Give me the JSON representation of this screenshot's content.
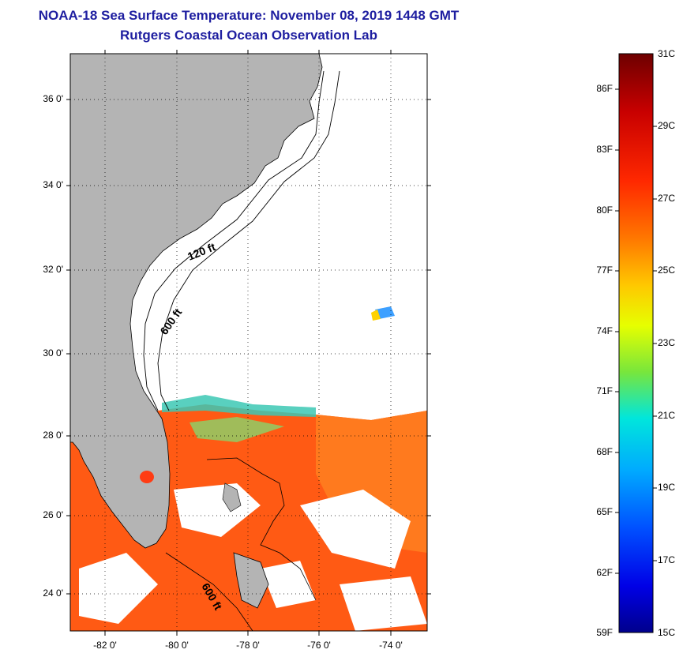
{
  "title": {
    "line1": "NOAA-18 Sea Surface Temperature:  November 08, 2019 1448 GMT",
    "line2": "Rutgers Coastal Ocean Observation Lab"
  },
  "map": {
    "lat_labels": [
      "36 0'",
      "34 0'",
      "32 0'",
      "30 0'",
      "28 0'",
      "26 0'",
      "24 0'"
    ],
    "lon_labels": [
      "-82 0'",
      "-80 0'",
      "-78 0'",
      "-76 0'",
      "-74 0'"
    ],
    "contour_labels": [
      "120 ft",
      "600 ft",
      "600 ft"
    ],
    "colors": {
      "land": "#b4b4b4",
      "no_data": "#ffffff",
      "warm_water": "#ff5a10",
      "grid": "#000000"
    }
  },
  "colorbar": {
    "f_labels": [
      "86F",
      "83F",
      "80F",
      "77F",
      "74F",
      "71F",
      "68F",
      "65F",
      "62F",
      "59F"
    ],
    "c_labels": [
      "31C",
      "29C",
      "27C",
      "25C",
      "23C",
      "21C",
      "19C",
      "17C",
      "15C"
    ],
    "colors": [
      "#7a0000",
      "#d40000",
      "#ff3c00",
      "#ff8c00",
      "#ffd200",
      "#c8ff00",
      "#3cd23c",
      "#00ffff",
      "#0096ff",
      "#0000ff",
      "#000096"
    ]
  }
}
